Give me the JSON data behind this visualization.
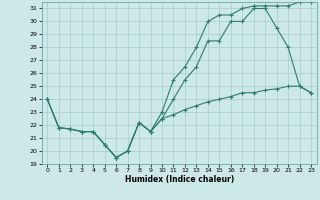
{
  "xlabel": "Humidex (Indice chaleur)",
  "background_color": "#cce8e8",
  "grid_color": "#aacccc",
  "line_color": "#2e7d6e",
  "xlim": [
    -0.5,
    23.5
  ],
  "ylim": [
    19,
    31.5
  ],
  "yticks": [
    19,
    20,
    21,
    22,
    23,
    24,
    25,
    26,
    27,
    28,
    29,
    30,
    31
  ],
  "xticks": [
    0,
    1,
    2,
    3,
    4,
    5,
    6,
    7,
    8,
    9,
    10,
    11,
    12,
    13,
    14,
    15,
    16,
    17,
    18,
    19,
    20,
    21,
    22,
    23
  ],
  "series1": {
    "x": [
      0,
      1,
      2,
      3,
      4,
      5,
      6,
      7,
      8,
      9,
      10,
      11,
      12,
      13,
      14,
      15,
      16,
      17,
      18,
      19,
      20,
      21,
      22,
      23
    ],
    "y": [
      24,
      21.8,
      21.7,
      21.5,
      21.5,
      20.5,
      19.5,
      20.0,
      22.2,
      21.5,
      22.5,
      24.0,
      25.5,
      26.5,
      28.5,
      28.5,
      30.0,
      30.0,
      31.0,
      31.0,
      29.5,
      28.0,
      25.0,
      24.5
    ]
  },
  "series2": {
    "x": [
      0,
      1,
      2,
      3,
      4,
      5,
      6,
      7,
      8,
      9,
      10,
      11,
      12,
      13,
      14,
      15,
      16,
      17,
      18,
      19,
      20,
      21,
      22,
      23
    ],
    "y": [
      24,
      21.8,
      21.7,
      21.5,
      21.5,
      20.5,
      19.5,
      20.0,
      22.2,
      21.5,
      23.0,
      25.5,
      26.5,
      28.0,
      30.0,
      30.5,
      30.5,
      31.0,
      31.2,
      31.2,
      31.2,
      31.2,
      31.5,
      31.5
    ]
  },
  "series3": {
    "x": [
      0,
      1,
      2,
      3,
      4,
      5,
      6,
      7,
      8,
      9,
      10,
      11,
      12,
      13,
      14,
      15,
      16,
      17,
      18,
      19,
      20,
      21,
      22,
      23
    ],
    "y": [
      24,
      21.8,
      21.7,
      21.5,
      21.5,
      20.5,
      19.5,
      20.0,
      22.2,
      21.5,
      22.5,
      22.8,
      23.2,
      23.5,
      23.8,
      24.0,
      24.2,
      24.5,
      24.5,
      24.7,
      24.8,
      25.0,
      25.0,
      24.5
    ]
  }
}
